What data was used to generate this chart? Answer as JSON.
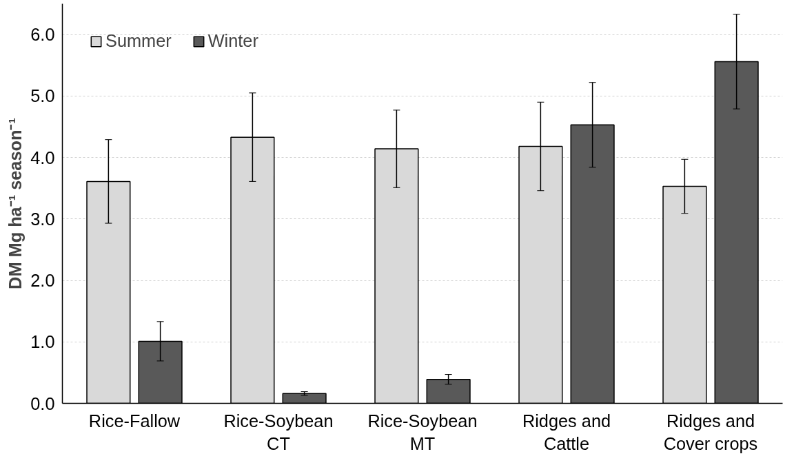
{
  "chart_data": {
    "type": "bar",
    "ylabel": "DM Mg ha⁻¹ season⁻¹",
    "categories": [
      "Rice-Fallow",
      "Rice-Soybean\nCT",
      "Rice-Soybean\nMT",
      "Ridges and\nCattle",
      "Ridges and\nCover crops"
    ],
    "series": [
      {
        "name": "Summer",
        "color": "#d9d9d9",
        "values": [
          3.61,
          4.33,
          4.14,
          4.18,
          3.53
        ],
        "errors": [
          0.68,
          0.72,
          0.63,
          0.72,
          0.44
        ]
      },
      {
        "name": "Winter",
        "color": "#595959",
        "values": [
          1.01,
          0.16,
          0.39,
          4.53,
          5.56
        ],
        "errors": [
          0.32,
          0.03,
          0.08,
          0.69,
          0.77
        ]
      }
    ],
    "ylim": [
      0,
      6.5
    ],
    "yticks": [
      {
        "value": 0,
        "label": "0.0"
      },
      {
        "value": 1,
        "label": "1.0"
      },
      {
        "value": 2,
        "label": "2.0"
      },
      {
        "value": 3,
        "label": "3.0"
      },
      {
        "value": 4,
        "label": "4.0"
      },
      {
        "value": 5,
        "label": "5.0"
      },
      {
        "value": 6,
        "label": "6.0"
      }
    ],
    "grid": "y",
    "legend": "top left"
  }
}
